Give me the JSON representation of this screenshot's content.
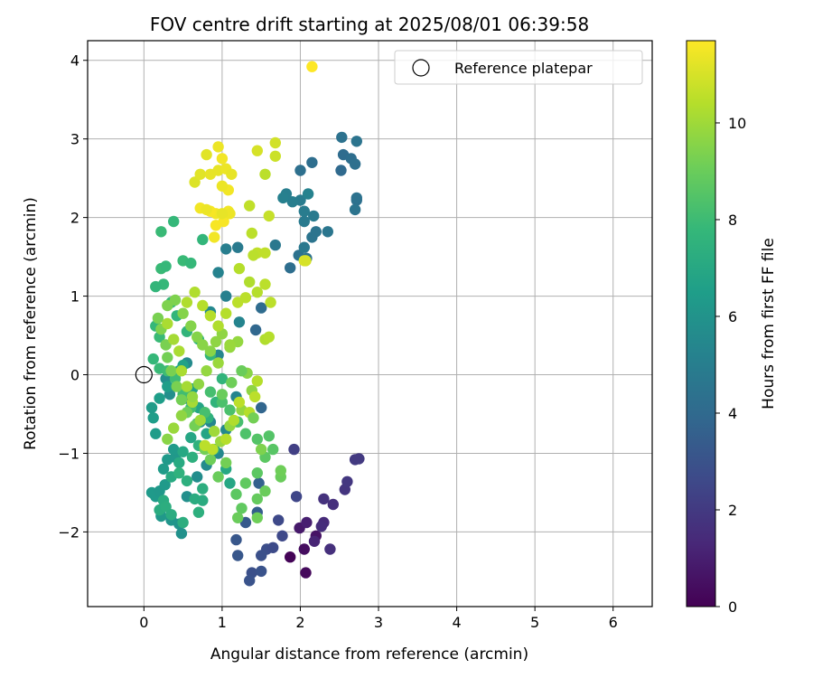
{
  "chart_data": {
    "type": "scatter",
    "title": "FOV centre drift starting at 2025/08/01 06:39:58",
    "xlabel": "Angular distance from reference (arcmin)",
    "ylabel": "Rotation from reference (arcmin)",
    "xlim": [
      -0.72,
      6.5
    ],
    "ylim": [
      -2.95,
      4.25
    ],
    "xticks": [
      0,
      1,
      2,
      3,
      4,
      5,
      6
    ],
    "yticks": [
      -2,
      -1,
      0,
      1,
      2,
      3,
      4
    ],
    "xtick_labels": [
      "0",
      "1",
      "2",
      "3",
      "4",
      "5",
      "6"
    ],
    "ytick_labels": [
      "−2",
      "−1",
      "0",
      "1",
      "2",
      "3",
      "4"
    ],
    "grid": true,
    "legend": {
      "placement": "top-right",
      "entries": [
        {
          "label": "Reference platepar",
          "marker": "hollow-circle",
          "x": 0,
          "y": 0
        }
      ]
    },
    "colorbar": {
      "label": "Hours from first FF file",
      "colormap": "viridis",
      "range": [
        0,
        11.7
      ],
      "ticks": [
        0,
        2,
        4,
        6,
        8,
        10
      ],
      "tick_labels": [
        "0",
        "2",
        "4",
        "6",
        "8",
        "10"
      ]
    },
    "points": [
      [
        1.87,
        -2.32,
        0.1
      ],
      [
        2.07,
        -2.52,
        0.3
      ],
      [
        2.05,
        -2.22,
        0.4
      ],
      [
        2.2,
        -2.05,
        0.6
      ],
      [
        1.99,
        -1.95,
        0.8
      ],
      [
        2.08,
        -1.88,
        1.0
      ],
      [
        2.18,
        -2.12,
        1.2
      ],
      [
        2.3,
        -1.88,
        1.4
      ],
      [
        2.27,
        -1.93,
        1.5
      ],
      [
        2.42,
        -1.65,
        1.6
      ],
      [
        2.38,
        -2.22,
        1.6
      ],
      [
        2.3,
        -1.58,
        1.7
      ],
      [
        2.57,
        -1.46,
        1.8
      ],
      [
        2.6,
        -1.36,
        1.9
      ],
      [
        2.7,
        -1.08,
        2.0
      ],
      [
        2.75,
        -1.07,
        2.0
      ],
      [
        1.92,
        -0.95,
        2.2
      ],
      [
        1.95,
        -1.55,
        2.5
      ],
      [
        1.72,
        -1.85,
        2.6
      ],
      [
        1.57,
        -2.22,
        2.8
      ],
      [
        1.5,
        -2.3,
        2.9
      ],
      [
        1.65,
        -2.2,
        2.7
      ],
      [
        1.77,
        -2.05,
        2.6
      ],
      [
        1.38,
        -2.52,
        2.9
      ],
      [
        1.35,
        -2.62,
        3.0
      ],
      [
        1.5,
        -2.5,
        3.0
      ],
      [
        1.2,
        -2.3,
        3.2
      ],
      [
        1.18,
        -2.1,
        3.2
      ],
      [
        1.3,
        -1.88,
        3.3
      ],
      [
        1.45,
        -1.75,
        3.5
      ],
      [
        1.47,
        -1.38,
        3.6
      ],
      [
        1.5,
        -0.42,
        3.8
      ],
      [
        1.43,
        0.57,
        3.9
      ],
      [
        1.5,
        0.85,
        4.1
      ],
      [
        1.87,
        1.36,
        4.2
      ],
      [
        1.98,
        1.52,
        4.4
      ],
      [
        2.08,
        1.48,
        4.4
      ],
      [
        2.15,
        1.75,
        4.5
      ],
      [
        2.2,
        1.82,
        4.5
      ],
      [
        2.35,
        1.82,
        4.6
      ],
      [
        2.05,
        1.62,
        4.7
      ],
      [
        2.05,
        1.95,
        4.8
      ],
      [
        2.17,
        2.02,
        4.8
      ],
      [
        2.05,
        2.08,
        4.9
      ],
      [
        2.0,
        2.22,
        4.9
      ],
      [
        1.9,
        2.2,
        5.0
      ],
      [
        1.82,
        2.3,
        5.0
      ],
      [
        1.78,
        2.25,
        5.1
      ],
      [
        2.1,
        2.3,
        5.2
      ],
      [
        2.0,
        2.6,
        4.3
      ],
      [
        2.15,
        2.7,
        4.2
      ],
      [
        2.52,
        2.6,
        4.0
      ],
      [
        2.55,
        2.8,
        4.1
      ],
      [
        2.65,
        2.75,
        4.2
      ],
      [
        2.7,
        2.68,
        4.3
      ],
      [
        2.53,
        3.02,
        4.4
      ],
      [
        2.72,
        2.97,
        4.5
      ],
      [
        2.72,
        2.22,
        4.3
      ],
      [
        2.72,
        2.25,
        4.4
      ],
      [
        2.7,
        2.1,
        4.5
      ],
      [
        1.68,
        1.65,
        4.7
      ],
      [
        1.2,
        1.62,
        4.8
      ],
      [
        1.05,
        1.6,
        5.0
      ],
      [
        0.95,
        1.3,
        5.2
      ],
      [
        1.05,
        1.0,
        5.1
      ],
      [
        1.22,
        0.67,
        5.3
      ],
      [
        0.85,
        0.8,
        5.5
      ],
      [
        0.95,
        0.25,
        5.4
      ],
      [
        0.55,
        0.15,
        5.6
      ],
      [
        0.28,
        -0.05,
        5.7
      ],
      [
        0.33,
        -0.25,
        5.8
      ],
      [
        0.55,
        -0.3,
        5.5
      ],
      [
        0.72,
        -0.6,
        5.6
      ],
      [
        0.85,
        -0.6,
        5.4
      ],
      [
        1.18,
        -0.28,
        5.3
      ],
      [
        1.05,
        -0.7,
        5.5
      ],
      [
        0.95,
        -1.0,
        5.5
      ],
      [
        0.8,
        -1.15,
        5.6
      ],
      [
        0.68,
        -1.3,
        5.7
      ],
      [
        0.55,
        -1.55,
        5.8
      ],
      [
        0.45,
        -1.9,
        6.0
      ],
      [
        0.48,
        -2.02,
        5.9
      ],
      [
        0.35,
        -1.85,
        6.1
      ],
      [
        0.22,
        -1.8,
        6.2
      ],
      [
        0.15,
        -1.55,
        6.3
      ],
      [
        0.1,
        -1.5,
        6.3
      ],
      [
        0.2,
        -1.48,
        6.2
      ],
      [
        0.27,
        -1.4,
        6.3
      ],
      [
        0.25,
        -1.2,
        6.4
      ],
      [
        0.3,
        -1.08,
        6.3
      ],
      [
        0.4,
        -1.05,
        6.2
      ],
      [
        0.38,
        -0.95,
        6.3
      ],
      [
        0.15,
        -0.75,
        6.4
      ],
      [
        0.12,
        -0.55,
        6.5
      ],
      [
        0.1,
        -0.42,
        6.4
      ],
      [
        0.2,
        -0.3,
        6.5
      ],
      [
        0.3,
        -0.15,
        6.5
      ],
      [
        0.45,
        0.05,
        6.6
      ],
      [
        0.5,
        0.12,
        6.7
      ],
      [
        0.62,
        -0.18,
        6.7
      ],
      [
        0.7,
        -0.42,
        6.8
      ],
      [
        0.8,
        -0.75,
        6.8
      ],
      [
        0.9,
        -0.95,
        6.9
      ],
      [
        1.05,
        -1.2,
        7.0
      ],
      [
        1.1,
        -1.38,
        6.9
      ],
      [
        0.6,
        -0.8,
        6.9
      ],
      [
        0.5,
        -0.98,
        7.0
      ],
      [
        0.45,
        -1.12,
        7.1
      ],
      [
        0.35,
        -1.3,
        7.1
      ],
      [
        0.25,
        -1.6,
        7.2
      ],
      [
        0.2,
        -1.72,
        7.2
      ],
      [
        0.28,
        -1.68,
        7.3
      ],
      [
        0.35,
        -1.78,
        7.2
      ],
      [
        0.5,
        -1.88,
        7.3
      ],
      [
        0.65,
        -1.58,
        7.2
      ],
      [
        0.75,
        -1.45,
        7.3
      ],
      [
        0.7,
        -1.75,
        7.4
      ],
      [
        0.75,
        -1.6,
        7.2
      ],
      [
        0.55,
        -1.35,
        7.4
      ],
      [
        0.45,
        -1.25,
        7.5
      ],
      [
        0.62,
        -1.05,
        7.4
      ],
      [
        0.7,
        -0.9,
        7.5
      ],
      [
        0.82,
        -0.55,
        7.5
      ],
      [
        0.92,
        -0.35,
        7.6
      ],
      [
        1.0,
        -0.05,
        7.6
      ],
      [
        0.85,
        0.25,
        7.7
      ],
      [
        0.7,
        0.45,
        7.7
      ],
      [
        0.55,
        0.55,
        7.6
      ],
      [
        0.42,
        0.75,
        7.7
      ],
      [
        0.35,
        0.92,
        7.8
      ],
      [
        0.25,
        1.15,
        7.8
      ],
      [
        0.15,
        1.12,
        7.7
      ],
      [
        0.22,
        1.35,
        7.9
      ],
      [
        0.28,
        1.38,
        7.8
      ],
      [
        0.5,
        1.45,
        7.9
      ],
      [
        0.6,
        1.42,
        7.8
      ],
      [
        0.75,
        1.72,
        7.7
      ],
      [
        0.38,
        1.95,
        7.8
      ],
      [
        0.22,
        1.82,
        7.9
      ],
      [
        0.15,
        0.62,
        7.8
      ],
      [
        0.2,
        0.48,
        7.9
      ],
      [
        0.12,
        0.2,
        7.8
      ],
      [
        0.2,
        0.08,
        7.9
      ],
      [
        0.3,
        0.05,
        8.0
      ],
      [
        0.4,
        -0.05,
        8.0
      ],
      [
        0.5,
        -0.25,
        8.1
      ],
      [
        0.6,
        -0.42,
        8.1
      ],
      [
        0.68,
        -0.62,
        8.1
      ],
      [
        0.78,
        -0.48,
        8.2
      ],
      [
        0.85,
        -0.22,
        8.2
      ],
      [
        1.0,
        -0.35,
        8.3
      ],
      [
        1.1,
        -0.45,
        8.3
      ],
      [
        1.2,
        -0.6,
        8.2
      ],
      [
        1.3,
        -0.75,
        8.4
      ],
      [
        1.45,
        -0.82,
        8.5
      ],
      [
        1.6,
        -0.78,
        8.5
      ],
      [
        1.65,
        -0.95,
        8.6
      ],
      [
        1.55,
        -1.05,
        8.7
      ],
      [
        1.45,
        -1.25,
        8.7
      ],
      [
        1.3,
        -1.38,
        8.8
      ],
      [
        1.18,
        -1.52,
        8.7
      ],
      [
        1.25,
        -1.7,
        8.8
      ],
      [
        1.45,
        -1.58,
        8.9
      ],
      [
        1.55,
        -1.48,
        9.0
      ],
      [
        1.75,
        -1.3,
        9.0
      ],
      [
        1.75,
        -1.22,
        9.1
      ],
      [
        1.2,
        -1.82,
        9.0
      ],
      [
        1.45,
        -1.82,
        9.1
      ],
      [
        1.05,
        -1.12,
        9.2
      ],
      [
        0.95,
        -1.3,
        9.0
      ],
      [
        0.85,
        -1.08,
        9.1
      ],
      [
        0.78,
        -0.95,
        9.2
      ],
      [
        0.65,
        -0.65,
        9.2
      ],
      [
        0.55,
        -0.48,
        9.1
      ],
      [
        0.48,
        -0.32,
        9.2
      ],
      [
        0.42,
        -0.15,
        9.3
      ],
      [
        0.35,
        0.05,
        9.3
      ],
      [
        0.3,
        0.22,
        9.2
      ],
      [
        0.28,
        0.38,
        9.3
      ],
      [
        0.22,
        0.58,
        9.4
      ],
      [
        0.18,
        0.72,
        9.3
      ],
      [
        0.3,
        0.88,
        9.4
      ],
      [
        0.4,
        0.95,
        9.4
      ],
      [
        0.5,
        0.78,
        9.5
      ],
      [
        0.6,
        0.62,
        9.5
      ],
      [
        0.68,
        0.48,
        9.5
      ],
      [
        0.75,
        0.38,
        9.6
      ],
      [
        0.85,
        0.3,
        9.6
      ],
      [
        0.92,
        0.42,
        9.7
      ],
      [
        1.0,
        0.52,
        9.7
      ],
      [
        1.1,
        0.35,
        9.8
      ],
      [
        1.2,
        0.42,
        9.8
      ],
      [
        1.32,
        0.02,
        9.6
      ],
      [
        1.38,
        -0.2,
        9.7
      ],
      [
        1.25,
        -0.45,
        9.8
      ],
      [
        1.1,
        -0.65,
        9.8
      ],
      [
        0.98,
        -0.85,
        9.9
      ],
      [
        0.9,
        -0.72,
        10.0
      ],
      [
        0.72,
        -0.58,
        10.0
      ],
      [
        0.62,
        -0.35,
        10.1
      ],
      [
        0.55,
        -0.15,
        10.1
      ],
      [
        0.48,
        0.05,
        10.2
      ],
      [
        0.45,
        0.3,
        10.2
      ],
      [
        0.38,
        0.45,
        10.1
      ],
      [
        0.3,
        0.65,
        10.2
      ],
      [
        0.55,
        0.92,
        10.3
      ],
      [
        0.65,
        1.05,
        10.3
      ],
      [
        0.75,
        0.88,
        10.4
      ],
      [
        0.85,
        0.75,
        10.4
      ],
      [
        0.95,
        0.62,
        10.3
      ],
      [
        1.05,
        0.78,
        10.4
      ],
      [
        1.2,
        0.92,
        10.5
      ],
      [
        1.3,
        0.98,
        10.5
      ],
      [
        1.35,
        1.18,
        10.3
      ],
      [
        1.45,
        1.05,
        10.4
      ],
      [
        1.55,
        1.15,
        10.5
      ],
      [
        1.62,
        0.92,
        10.5
      ],
      [
        1.55,
        0.45,
        10.3
      ],
      [
        1.6,
        0.48,
        10.4
      ],
      [
        1.45,
        -0.08,
        10.4
      ],
      [
        1.42,
        -0.28,
        10.5
      ],
      [
        1.35,
        -0.48,
        10.4
      ],
      [
        1.22,
        -0.35,
        10.5
      ],
      [
        1.15,
        -0.58,
        10.3
      ],
      [
        1.05,
        -0.82,
        10.4
      ],
      [
        0.88,
        -0.95,
        10.5
      ],
      [
        0.78,
        -0.9,
        10.5
      ],
      [
        1.22,
        1.35,
        10.4
      ],
      [
        1.45,
        1.55,
        10.6
      ],
      [
        1.4,
        1.52,
        10.5
      ],
      [
        1.55,
        1.55,
        10.6
      ],
      [
        1.38,
        1.8,
        10.5
      ],
      [
        1.35,
        2.15,
        10.6
      ],
      [
        1.55,
        2.55,
        10.5
      ],
      [
        1.6,
        2.02,
        10.7
      ],
      [
        1.68,
        2.78,
        10.8
      ],
      [
        1.68,
        2.95,
        10.9
      ],
      [
        1.45,
        2.85,
        11.0
      ],
      [
        2.05,
        1.45,
        11.1
      ],
      [
        2.07,
        1.45,
        11.0
      ],
      [
        0.65,
        2.45,
        11.1
      ],
      [
        0.72,
        2.55,
        11.2
      ],
      [
        0.85,
        2.55,
        11.3
      ],
      [
        0.8,
        2.8,
        11.2
      ],
      [
        0.95,
        2.6,
        11.3
      ],
      [
        0.95,
        2.9,
        11.4
      ],
      [
        1.0,
        2.75,
        11.5
      ],
      [
        1.05,
        2.62,
        11.4
      ],
      [
        1.12,
        2.55,
        11.3
      ],
      [
        1.08,
        2.35,
        11.5
      ],
      [
        1.0,
        2.4,
        11.4
      ],
      [
        0.92,
        2.05,
        11.5
      ],
      [
        0.85,
        2.08,
        11.6
      ],
      [
        0.72,
        2.12,
        11.5
      ],
      [
        0.8,
        2.1,
        11.4
      ],
      [
        0.92,
        1.9,
        11.6
      ],
      [
        0.9,
        1.75,
        11.5
      ],
      [
        1.02,
        1.95,
        11.6
      ],
      [
        1.08,
        2.08,
        11.5
      ],
      [
        1.1,
        2.05,
        11.4
      ],
      [
        1.0,
        2.05,
        11.3
      ],
      [
        2.15,
        3.92,
        11.7
      ],
      [
        1.1,
        0.38,
        9.9
      ],
      [
        0.95,
        0.15,
        9.9
      ],
      [
        0.8,
        0.05,
        9.8
      ],
      [
        0.7,
        -0.12,
        9.7
      ],
      [
        0.62,
        -0.28,
        9.8
      ],
      [
        0.48,
        -0.52,
        9.7
      ],
      [
        0.38,
        -0.68,
        9.9
      ],
      [
        0.3,
        -0.82,
        9.6
      ],
      [
        1.0,
        -0.25,
        9.0
      ],
      [
        1.12,
        -0.1,
        9.1
      ],
      [
        1.25,
        0.05,
        9.0
      ],
      [
        1.4,
        -0.55,
        9.2
      ],
      [
        1.5,
        -0.95,
        9.4
      ]
    ]
  }
}
